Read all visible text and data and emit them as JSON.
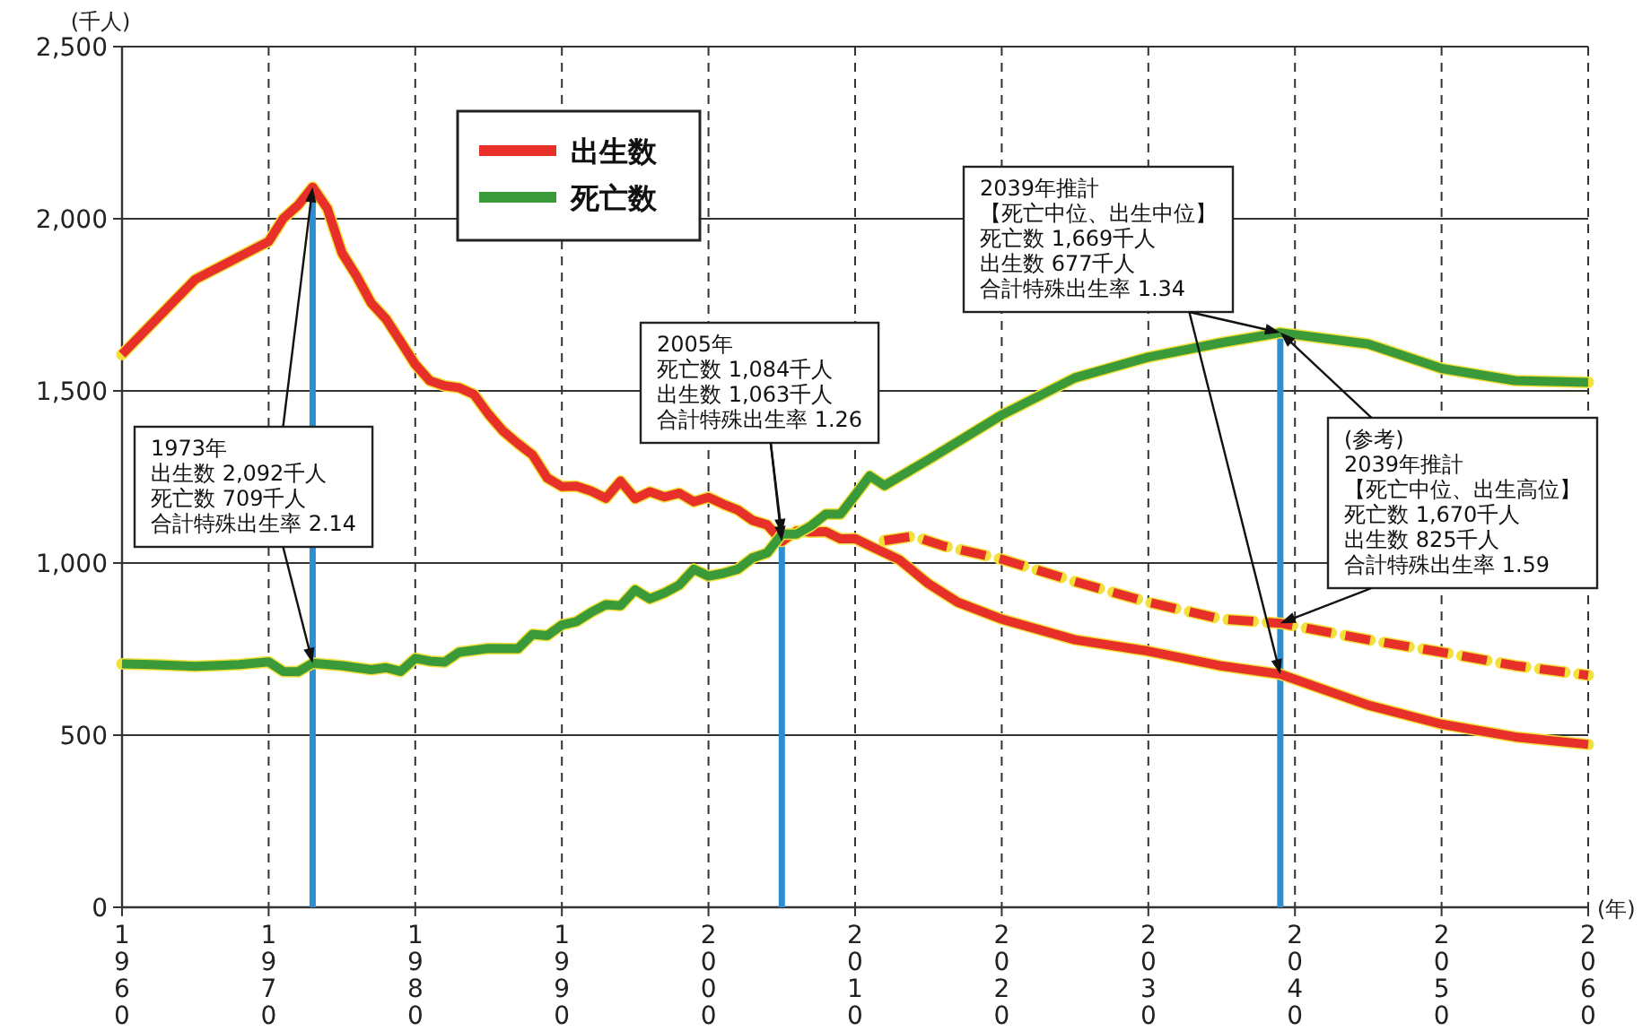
{
  "chart_data": {
    "type": "line",
    "xlabel": "(年)",
    "ylabel": "(千人)",
    "xlim": [
      1960,
      2060
    ],
    "xticks": [
      1960,
      1970,
      1980,
      1990,
      2000,
      2010,
      2020,
      2030,
      2040,
      2050,
      2060
    ],
    "ylim": [
      0,
      2500
    ],
    "yticks": [
      0,
      500,
      {
        "value": 1000,
        "label": "1,000"
      },
      {
        "value": 1500,
        "label": "1,500"
      },
      {
        "value": 2000,
        "label": "2,000"
      },
      {
        "value": 2500,
        "label": "2,500"
      }
    ],
    "grid": true,
    "legend": "top left",
    "series": [
      {
        "name": "出生数",
        "color": "#e8302a",
        "x": [
          1960,
          1965,
          1970,
          1971,
          1972,
          1973,
          1974,
          1975,
          1976,
          1977,
          1978,
          1979,
          1980,
          1981,
          1982,
          1983,
          1984,
          1985,
          1986,
          1987,
          1988,
          1989,
          1990,
          1991,
          1992,
          1993,
          1994,
          1995,
          1996,
          1997,
          1998,
          1999,
          2000,
          2001,
          2002,
          2003,
          2004,
          2005,
          2006,
          2007,
          2008,
          2009,
          2010,
          2011,
          2012,
          2013,
          2015,
          2017,
          2020,
          2025,
          2030,
          2035,
          2039,
          2045,
          2050,
          2055,
          2060
        ],
        "values": [
          1606,
          1824,
          1934,
          2001,
          2039,
          2092,
          2030,
          1901,
          1833,
          1755,
          1709,
          1643,
          1577,
          1529,
          1515,
          1509,
          1490,
          1432,
          1383,
          1347,
          1314,
          1247,
          1222,
          1223,
          1209,
          1188,
          1238,
          1187,
          1207,
          1192,
          1203,
          1178,
          1191,
          1171,
          1154,
          1124,
          1111,
          1063,
          1093,
          1090,
          1091,
          1070,
          1071,
          1050,
          1030,
          1010,
          940,
          886,
          837,
          777,
          744,
          701,
          677,
          587,
          532,
          495,
          473
        ]
      },
      {
        "name": "死亡数",
        "color": "#3a9a3a",
        "x": [
          1960,
          1962,
          1965,
          1968,
          1970,
          1971,
          1972,
          1973,
          1975,
          1977,
          1978,
          1979,
          1980,
          1981,
          1982,
          1983,
          1985,
          1987,
          1988,
          1989,
          1990,
          1991,
          1992,
          1993,
          1994,
          1995,
          1996,
          1997,
          1998,
          1999,
          2000,
          2001,
          2002,
          2003,
          2004,
          2005,
          2006,
          2007,
          2008,
          2009,
          2010,
          2011,
          2012,
          2013,
          2015,
          2020,
          2025,
          2030,
          2035,
          2039,
          2045,
          2050,
          2055,
          2060
        ],
        "values": [
          707,
          705,
          700,
          705,
          713,
          685,
          684,
          709,
          702,
          690,
          696,
          685,
          723,
          715,
          712,
          741,
          752,
          751,
          793,
          789,
          820,
          830,
          857,
          879,
          876,
          922,
          896,
          913,
          936,
          982,
          962,
          970,
          982,
          1015,
          1029,
          1084,
          1084,
          1108,
          1142,
          1142,
          1197,
          1253,
          1225,
          1250,
          1300,
          1430,
          1538,
          1598,
          1640,
          1669,
          1636,
          1565,
          1530,
          1525
        ]
      },
      {
        "color": "#e8302a",
        "line_style": "dashed",
        "x": [
          2012,
          2014,
          2016,
          2020,
          2025,
          2030,
          2035,
          2039,
          2045,
          2050,
          2055,
          2060
        ],
        "values": [
          1065,
          1078,
          1050,
          1011,
          946,
          886,
          837,
          825,
          777,
          741,
          702,
          674
        ]
      }
    ],
    "ref_lines": [
      {
        "axis": "x",
        "value": 1973,
        "color": "#2e8fd0"
      },
      {
        "axis": "x",
        "value": 2005,
        "color": "#2e8fd0"
      },
      {
        "axis": "x",
        "value": 2039,
        "color": "#2e8fd0"
      }
    ],
    "annotations": [
      "1973年",
      "出生数 2,092千人",
      "死亡数 709千人",
      {
        "text": "合計特殊出生率 2.14",
        "x": 1973,
        "y": 709
      },
      "2005年",
      "死亡数 1,084千人",
      "出生数 1,063千人",
      {
        "text": "合計特殊出生率 1.26",
        "x": 2005,
        "y": 1084
      },
      "2039年推計",
      "【死亡中位、出生中位】",
      "死亡数 1,669千人",
      "出生数 677千人",
      {
        "text": "合計特殊出生率 1.34",
        "x": 2039,
        "y": 1669
      },
      {
        "text": "(参考)",
        "x": 2039,
        "y": 1670
      },
      "2039年推計",
      "【死亡中位、出生高位】",
      "死亡数 1,670千人",
      "出生数 825千人",
      {
        "text": "合計特殊出生率 1.59",
        "x": 2039,
        "y": 825
      }
    ]
  }
}
